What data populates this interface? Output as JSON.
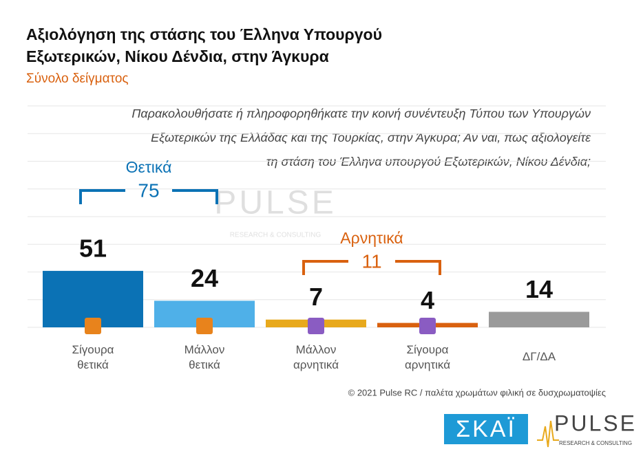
{
  "chart_data": {
    "type": "bar",
    "title": [
      "Αξιολόγηση της στάσης του Έλληνα Υπουργού",
      "Εξωτερικών, Νίκου Δένδια, στην Άγκυρα"
    ],
    "subtitle": "Σύνολο δείγματος",
    "question": [
      "Παρακολουθήσατε ή πληροφορηθήκατε την κοινή συνέντευξη Τύπου των Υπουργών",
      "Εξωτερικών της Ελλάδας και της Τουρκίας, στην Άγκυρα; Αν ναι, πως αξιολογείτε",
      "τη στάση του Έλληνα υπουργού Εξωτερικών, Νίκου Δένδια;"
    ],
    "categories": [
      "Σίγουρα\nθετικά",
      "Μάλλον\nθετικά",
      "Μάλλον\nαρνητικά",
      "Σίγουρα\nαρνητικά",
      "ΔΓ/ΔΑ"
    ],
    "values": [
      51,
      24,
      7,
      4,
      14
    ],
    "colors": [
      "#0b72b5",
      "#4fb0e8",
      "#e8a91c",
      "#d9610f",
      "#9a9a9a"
    ],
    "groups": [
      {
        "label": "Θετικά",
        "value": 75,
        "color": "#0b72b5",
        "from": 0,
        "to": 1
      },
      {
        "label": "Αρνητικά",
        "value": 11,
        "color": "#d9610f",
        "from": 2,
        "to": 3
      }
    ],
    "ylim": [
      0,
      200
    ],
    "yticks": [
      0,
      25,
      50,
      75,
      100,
      125,
      150,
      175,
      200
    ],
    "grid": true,
    "footer": "© 2021 Pulse RC  /  παλέτα χρωμάτων φιλική σε δυσχρωματοψίες",
    "logos": {
      "skai": "ΣΚΑΪ",
      "pulse": "PULSE",
      "pulse_sub": "RESEARCH & CONSULTING"
    }
  }
}
